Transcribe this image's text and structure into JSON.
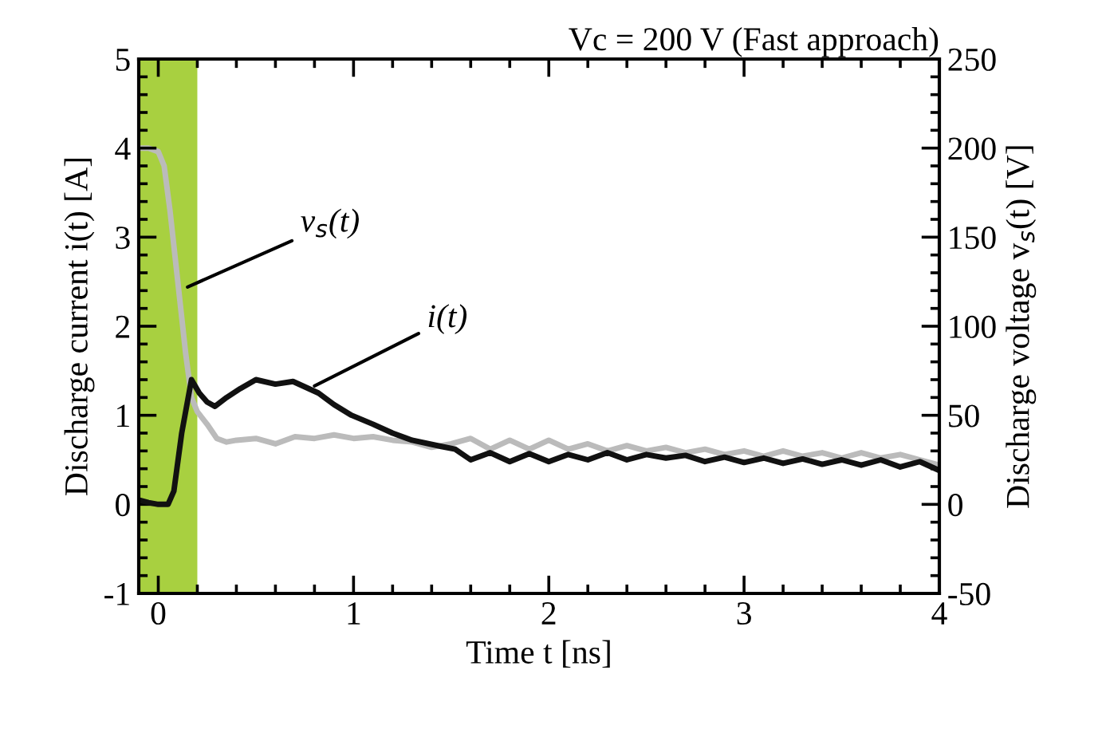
{
  "chart_data": {
    "type": "line",
    "title": "Vc = 200 V (Fast approach)",
    "xlabel": "Time t [ns]",
    "ylabel": "Discharge current i(t) [A]",
    "y2label": "Discharge voltage v$_{s}$(t) [V]",
    "xlim": [
      -0.1,
      4
    ],
    "xticks": [
      0,
      1,
      2,
      3,
      4
    ],
    "ylim": [
      -1,
      5
    ],
    "yticks": [
      -1,
      0,
      1,
      2,
      3,
      4,
      5
    ],
    "y2lim": [
      -50,
      250
    ],
    "y2ticks": [
      -50,
      0,
      50,
      100,
      150,
      200,
      250
    ],
    "grid": false,
    "legend": false,
    "bands": [
      {
        "axis": "x",
        "from": -0.1,
        "to": 0.2,
        "color": "#a8d040"
      }
    ],
    "annotations": [
      {
        "text": "v$_{s}$(t)",
        "x": 0.15,
        "y": 2.44
      },
      {
        "text": "i(t)",
        "x": 0.8,
        "y": 1.33
      }
    ],
    "series": [
      {
        "color": "#bbbbbb",
        "axis": "y2",
        "x": [
          -0.1,
          -0.05,
          0.0,
          0.03,
          0.06,
          0.1,
          0.14,
          0.17,
          0.2,
          0.25,
          0.3,
          0.35,
          0.4,
          0.5,
          0.6,
          0.7,
          0.8,
          0.9,
          1.0,
          1.1,
          1.2,
          1.3,
          1.4,
          1.5,
          1.6,
          1.7,
          1.8,
          1.9,
          2.0,
          2.1,
          2.2,
          2.3,
          2.4,
          2.5,
          2.6,
          2.7,
          2.8,
          2.9,
          3.0,
          3.1,
          3.2,
          3.3,
          3.4,
          3.5,
          3.6,
          3.7,
          3.8,
          3.9,
          4.0
        ],
        "values": [
          200,
          200,
          198,
          190,
          165,
          125,
          85,
          60,
          52,
          45,
          37,
          35,
          36,
          37,
          34,
          38,
          37,
          39,
          37,
          38,
          36,
          35,
          32,
          34,
          37,
          31,
          36,
          31,
          36,
          31,
          34,
          30,
          33,
          30,
          32,
          29,
          31,
          28,
          30,
          27,
          30,
          27,
          29,
          26,
          29,
          26,
          28,
          25,
          22
        ]
      },
      {
        "color": "#111111",
        "x": [
          -0.1,
          -0.05,
          0.0,
          0.05,
          0.08,
          0.12,
          0.17,
          0.21,
          0.25,
          0.29,
          0.35,
          0.42,
          0.5,
          0.6,
          0.69,
          0.82,
          0.9,
          0.99,
          1.1,
          1.2,
          1.3,
          1.45,
          1.52,
          1.6,
          1.7,
          1.8,
          1.9,
          2.0,
          2.1,
          2.2,
          2.3,
          2.4,
          2.5,
          2.6,
          2.7,
          2.8,
          2.9,
          3.0,
          3.1,
          3.2,
          3.3,
          3.4,
          3.5,
          3.6,
          3.7,
          3.8,
          3.9,
          4.0
        ],
        "values": [
          0.05,
          0.02,
          0.0,
          0.0,
          0.15,
          0.8,
          1.4,
          1.25,
          1.15,
          1.1,
          1.2,
          1.3,
          1.4,
          1.35,
          1.38,
          1.25,
          1.12,
          1.0,
          0.9,
          0.8,
          0.72,
          0.65,
          0.62,
          0.5,
          0.58,
          0.48,
          0.57,
          0.48,
          0.56,
          0.5,
          0.58,
          0.5,
          0.56,
          0.52,
          0.55,
          0.48,
          0.53,
          0.47,
          0.52,
          0.46,
          0.51,
          0.45,
          0.5,
          0.44,
          0.5,
          0.42,
          0.48,
          0.38
        ]
      }
    ]
  }
}
